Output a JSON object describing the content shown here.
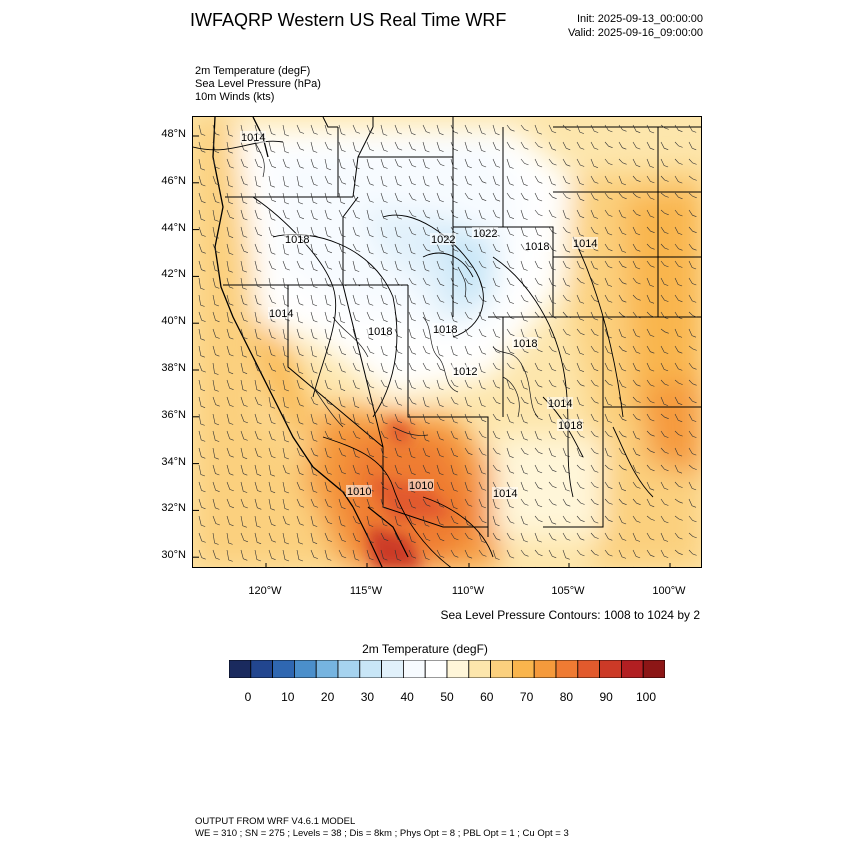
{
  "header": {
    "title": "IWFAQRP Western US Real Time WRF",
    "init": "Init: 2025-09-13_00:00:00",
    "valid": "Valid: 2025-09-16_09:00:00"
  },
  "fields": [
    "2m Temperature   (degF)",
    "Sea Level Pressure   (hPa)",
    "10m Winds   (kts)"
  ],
  "map": {
    "lat_labels": [
      "48°N",
      "46°N",
      "44°N",
      "42°N",
      "40°N",
      "38°N",
      "36°N",
      "34°N",
      "32°N",
      "30°N"
    ],
    "lon_labels": [
      "120°W",
      "115°W",
      "110°W",
      "105°W",
      "100°W"
    ],
    "pressure_labels": [
      "1014",
      "1018",
      "1022",
      "1022",
      "1018",
      "1014",
      "1014",
      "1018",
      "1018",
      "1018",
      "1014",
      "1018",
      "1010",
      "1010",
      "1012",
      "1014"
    ],
    "contour_note": "Sea Level Pressure Contours: 1008 to 1024 by 2"
  },
  "colorbar": {
    "title": "2m Temperature  (degF)",
    "colors": [
      "#1a2a5e",
      "#22468f",
      "#2f67b1",
      "#4b8fcb",
      "#76b4e0",
      "#a6d3ef",
      "#c8e6f7",
      "#e1f1fb",
      "#f7fbff",
      "#ffffff",
      "#fff6d9",
      "#fde6ac",
      "#fbd07e",
      "#f9b54d",
      "#f59a3c",
      "#ef7b33",
      "#e25a2d",
      "#cc3a27",
      "#b21f22",
      "#8c1616"
    ],
    "labels": [
      "0",
      "10",
      "20",
      "30",
      "40",
      "50",
      "60",
      "70",
      "80",
      "90",
      "100"
    ]
  },
  "footer": {
    "line1": "OUTPUT FROM WRF V4.6.1 MODEL",
    "line2": "WE = 310 ; SN = 275 ; Levels = 38 ; Dis = 8km ; Phys Opt = 8 ; PBL Opt = 1 ; Cu Opt = 3"
  }
}
